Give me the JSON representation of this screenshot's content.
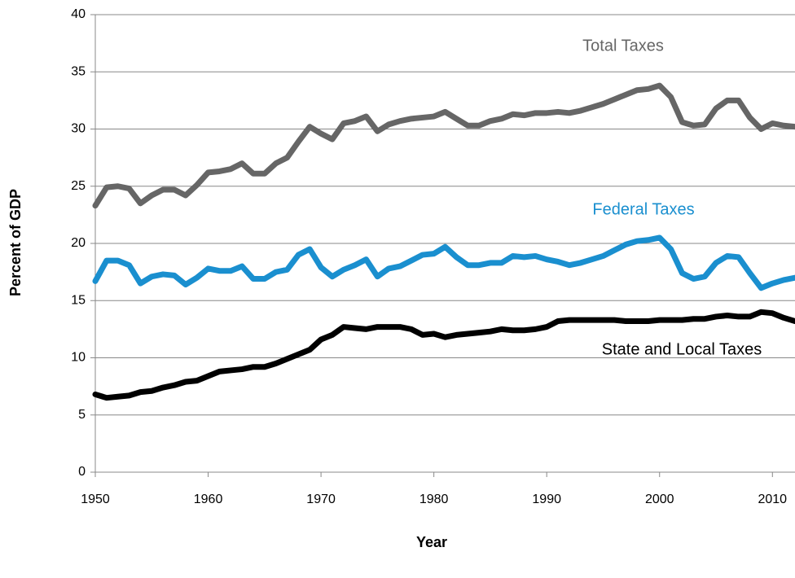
{
  "chart_data": {
    "type": "line",
    "x_label": "Year",
    "y_label": "Percent of GDP",
    "x": [
      1950,
      1951,
      1952,
      1953,
      1954,
      1955,
      1956,
      1957,
      1958,
      1959,
      1960,
      1961,
      1962,
      1963,
      1964,
      1965,
      1966,
      1967,
      1968,
      1969,
      1970,
      1971,
      1972,
      1973,
      1974,
      1975,
      1976,
      1977,
      1978,
      1979,
      1980,
      1981,
      1982,
      1983,
      1984,
      1985,
      1986,
      1987,
      1988,
      1989,
      1990,
      1991,
      1992,
      1993,
      1994,
      1995,
      1996,
      1997,
      1998,
      1999,
      2000,
      2001,
      2002,
      2003,
      2004,
      2005,
      2006,
      2007,
      2008,
      2009,
      2010,
      2011,
      2012
    ],
    "series": [
      {
        "name": "Total Taxes",
        "color": "#666666",
        "values": [
          23.3,
          24.9,
          25.0,
          24.8,
          23.5,
          24.2,
          24.7,
          24.7,
          24.2,
          25.1,
          26.2,
          26.3,
          26.5,
          27.0,
          26.1,
          26.1,
          27.0,
          27.5,
          28.9,
          30.2,
          29.6,
          29.1,
          30.5,
          30.7,
          31.1,
          29.8,
          30.4,
          30.7,
          30.9,
          31.0,
          31.1,
          31.5,
          30.9,
          30.3,
          30.3,
          30.7,
          30.9,
          31.3,
          31.2,
          31.4,
          31.4,
          31.5,
          31.4,
          31.6,
          31.9,
          32.2,
          32.6,
          33.0,
          33.4,
          33.5,
          33.8,
          32.8,
          30.6,
          30.3,
          30.4,
          31.8,
          32.5,
          32.5,
          31.0,
          30.0,
          30.5,
          30.3,
          30.2
        ]
      },
      {
        "name": "Federal Taxes",
        "color": "#1a8fcf",
        "values": [
          16.7,
          18.5,
          18.5,
          18.1,
          16.5,
          17.1,
          17.3,
          17.2,
          16.4,
          17.0,
          17.8,
          17.6,
          17.6,
          18.0,
          16.9,
          16.9,
          17.5,
          17.7,
          19.0,
          19.5,
          17.9,
          17.1,
          17.7,
          18.1,
          18.6,
          17.1,
          17.8,
          18.0,
          18.5,
          19.0,
          19.1,
          19.7,
          18.8,
          18.1,
          18.1,
          18.3,
          18.3,
          18.9,
          18.8,
          18.9,
          18.6,
          18.4,
          18.1,
          18.3,
          18.6,
          18.9,
          19.4,
          19.9,
          20.2,
          20.3,
          20.5,
          19.5,
          17.4,
          16.9,
          17.1,
          18.3,
          18.9,
          18.8,
          17.4,
          16.1,
          16.5,
          16.8,
          17.0
        ]
      },
      {
        "name": "State and Local Taxes",
        "color": "#000000",
        "values": [
          6.8,
          6.5,
          6.6,
          6.7,
          7.0,
          7.1,
          7.4,
          7.6,
          7.9,
          8.0,
          8.4,
          8.8,
          8.9,
          9.0,
          9.2,
          9.2,
          9.5,
          9.9,
          10.3,
          10.7,
          11.6,
          12.0,
          12.7,
          12.6,
          12.5,
          12.7,
          12.7,
          12.7,
          12.5,
          12.0,
          12.1,
          11.8,
          12.0,
          12.1,
          12.2,
          12.3,
          12.5,
          12.4,
          12.4,
          12.5,
          12.7,
          13.2,
          13.3,
          13.3,
          13.3,
          13.3,
          13.3,
          13.2,
          13.2,
          13.2,
          13.3,
          13.3,
          13.3,
          13.4,
          13.4,
          13.6,
          13.7,
          13.6,
          13.6,
          14.0,
          13.9,
          13.5,
          13.2
        ]
      }
    ],
    "xlim": [
      1950,
      2012
    ],
    "xticks": [
      1950,
      1960,
      1970,
      1980,
      1990,
      2000,
      2010
    ],
    "ylim": [
      0,
      40
    ],
    "yticks": [
      0,
      5,
      10,
      15,
      20,
      25,
      30,
      35,
      40
    ],
    "grid": true
  }
}
